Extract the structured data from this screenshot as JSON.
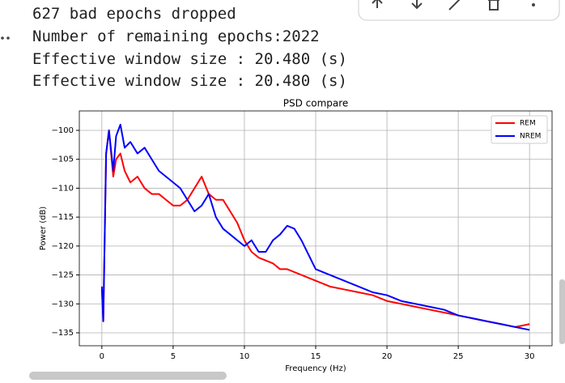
{
  "output": {
    "lines": [
      "627 bad epochs dropped",
      "Number of remaining epochs:2022",
      "Effective window size : 20.480 (s)",
      "Effective window size : 20.480 (s)"
    ]
  },
  "chart_data": {
    "type": "line",
    "title": "PSD compare",
    "x_label": "Frequency (Hz)",
    "y_label": "Power (dB)",
    "x": [
      0,
      0.1,
      0.3,
      0.5,
      0.8,
      1,
      1.3,
      1.6,
      2,
      2.5,
      3,
      3.5,
      4,
      4.5,
      5,
      5.5,
      6,
      6.5,
      7,
      7.5,
      8,
      8.5,
      9,
      9.5,
      10,
      10.5,
      11,
      11.5,
      12,
      12.5,
      13,
      13.5,
      14,
      15,
      16,
      17,
      18,
      19,
      20,
      21,
      22,
      23,
      24,
      25,
      26,
      27,
      28,
      29,
      30
    ],
    "series": [
      {
        "name": "REM",
        "color": "#ff0000",
        "values": [
          -127.5,
          -133,
          -104,
          -100,
          -108,
          -105,
          -104,
          -107,
          -109,
          -108,
          -110,
          -111,
          -111,
          -112,
          -113,
          -113,
          -112,
          -110,
          -108,
          -111,
          -112,
          -112,
          -114,
          -116,
          -119,
          -121,
          -122,
          -122.5,
          -123,
          -124,
          -124,
          -124.5,
          -125,
          -126,
          -127,
          -127.5,
          -128,
          -128.5,
          -129.5,
          -130,
          -130.5,
          -131,
          -131.5,
          -132,
          -132.5,
          -133,
          -133.5,
          -134,
          -133.5
        ]
      },
      {
        "name": "NREM",
        "color": "#0000ff",
        "values": [
          -127,
          -133,
          -104,
          -100,
          -107,
          -101,
          -99,
          -103,
          -102,
          -104,
          -103,
          -105,
          -107,
          -108,
          -109,
          -110,
          -112,
          -114,
          -113,
          -111,
          -115,
          -117,
          -118,
          -119,
          -120,
          -119,
          -121,
          -121,
          -119,
          -118,
          -116.5,
          -117,
          -119,
          -124,
          -125,
          -126,
          -127,
          -128,
          -128.5,
          -129.5,
          -130,
          -130.5,
          -131,
          -132,
          -132.5,
          -133,
          -133.5,
          -134,
          -134.5
        ]
      }
    ],
    "xlim": [
      -1.58,
      31.58
    ],
    "ylim": [
      -137.24,
      -96.64
    ],
    "xticks": [
      0,
      5,
      10,
      15,
      20,
      25,
      30
    ],
    "yticks": [
      {
        "value": -100,
        "label": "−100"
      },
      {
        "value": -105,
        "label": "−105"
      },
      {
        "value": -110,
        "label": "−110"
      },
      {
        "value": -115,
        "label": "−115"
      },
      {
        "value": -120,
        "label": "−120"
      },
      {
        "value": -125,
        "label": "−125"
      },
      {
        "value": -130,
        "label": "−130"
      },
      {
        "value": -135,
        "label": "−135"
      }
    ],
    "grid": true,
    "legend": "upper right"
  }
}
